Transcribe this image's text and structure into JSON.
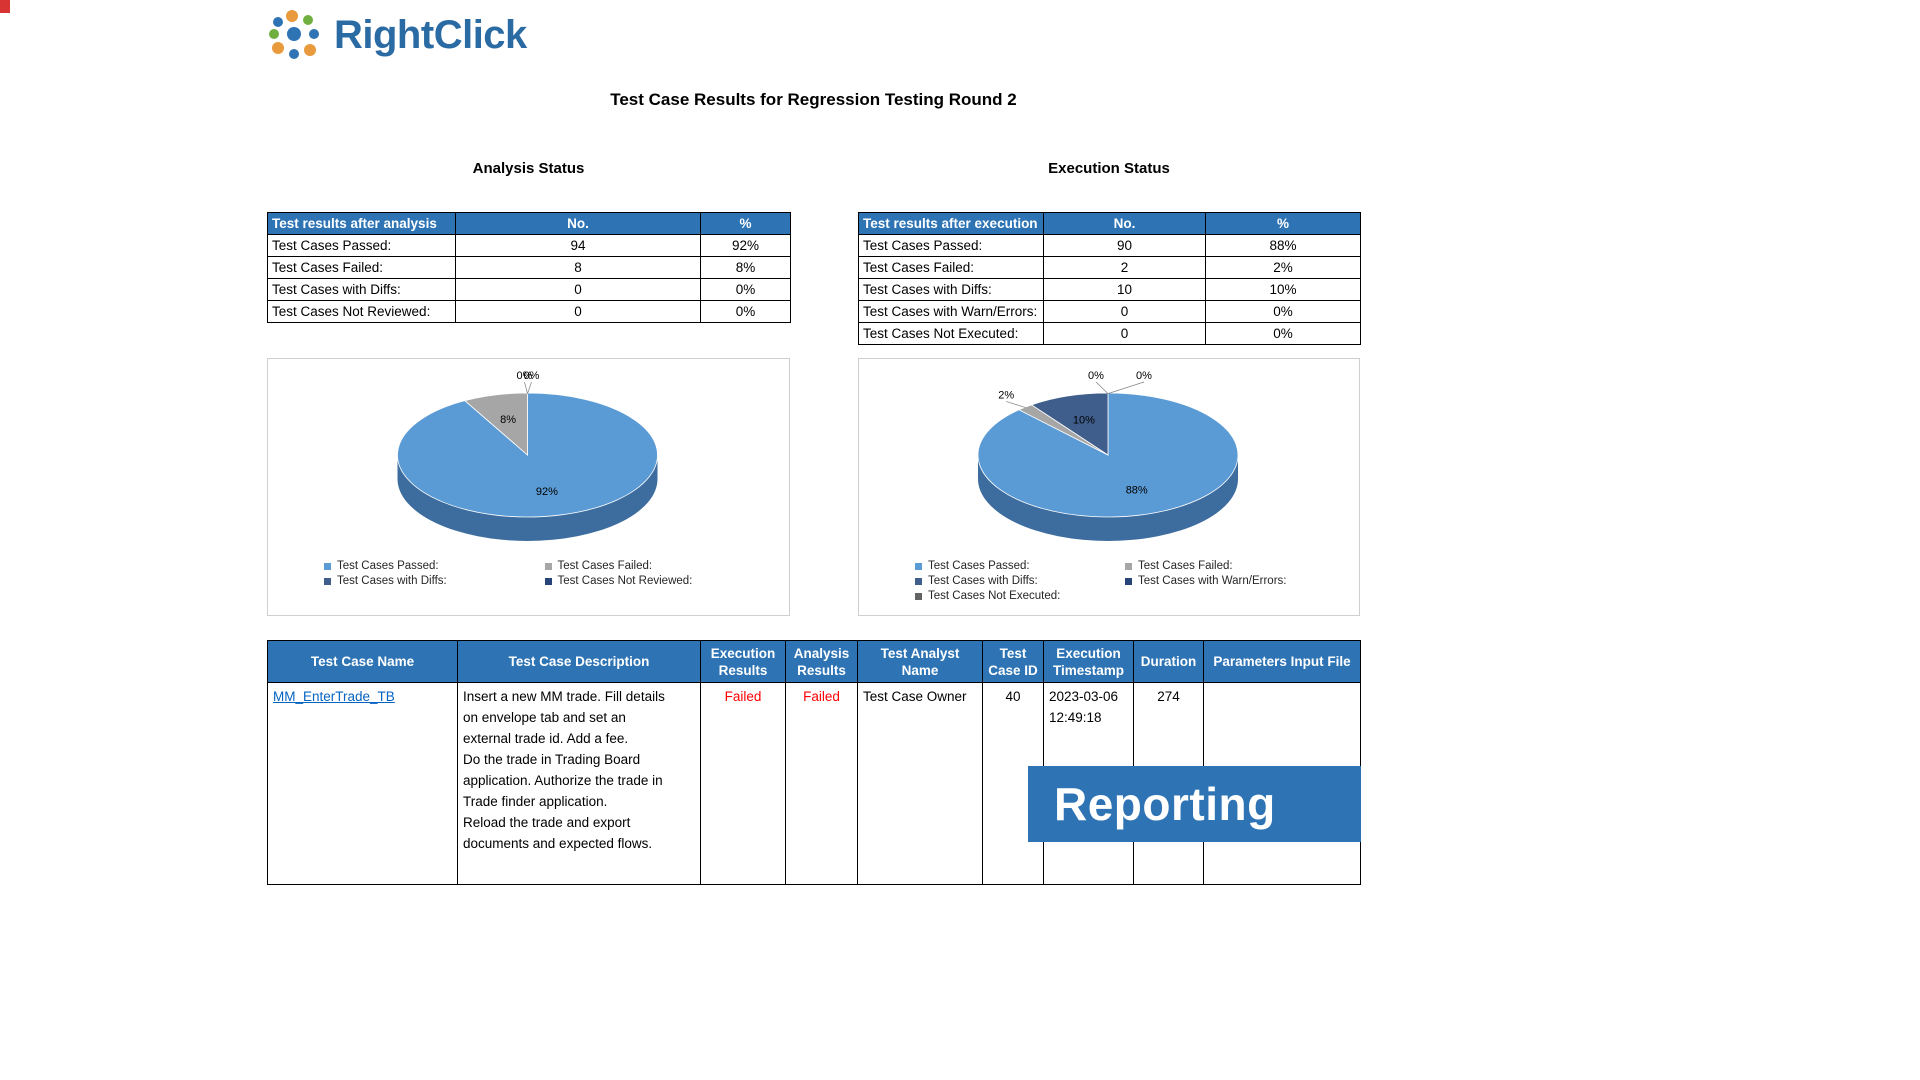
{
  "page": {
    "title": "Test Case Results for Regression Testing Round 2"
  },
  "logo": {
    "text": "RightClick"
  },
  "colors": {
    "accent": "#2e74b5",
    "failed_red": "#ff0000",
    "link_blue": "#0563c1",
    "pie_passed": "#5b9bd5",
    "pie_failed": "#a6a6a6",
    "pie_diffs": "#3f5e8c",
    "pie_side": "#3d6d9e"
  },
  "analysis": {
    "heading": "Analysis Status",
    "table": {
      "headers": [
        "Test results after analysis",
        "No.",
        "%"
      ],
      "rows": [
        [
          "Test Cases Passed:",
          "94",
          "92%"
        ],
        [
          "Test Cases Failed:",
          "8",
          "8%"
        ],
        [
          "Test Cases with Diffs:",
          "0",
          "0%"
        ],
        [
          "Test Cases Not Reviewed:",
          "0",
          "0%"
        ]
      ]
    }
  },
  "execution": {
    "heading": "Execution Status",
    "table": {
      "headers": [
        "Test results after execution",
        "No.",
        "%"
      ],
      "rows": [
        [
          "Test Cases Passed:",
          "90",
          "88%"
        ],
        [
          "Test Cases Failed:",
          "2",
          "2%"
        ],
        [
          "Test Cases with Diffs:",
          "10",
          "10%"
        ],
        [
          "Test Cases with Warn/Errors:",
          "0",
          "0%"
        ],
        [
          "Test Cases Not Executed:",
          "0",
          "0%"
        ]
      ]
    }
  },
  "chart_data": [
    {
      "type": "pie",
      "title": "Analysis Status",
      "effect": "3d",
      "legend_position": "bottom",
      "side_color": "#3d6d9e",
      "slices": [
        {
          "label": "Test Cases Passed:",
          "value": 92,
          "display": "92%",
          "color": "#5b9bd5"
        },
        {
          "label": "Test Cases Failed:",
          "value": 8,
          "display": "8%",
          "color": "#a6a6a6"
        },
        {
          "label": "Test Cases with Diffs:",
          "value": 0,
          "display": "0%",
          "color": "#3f5e8c",
          "label_dx": -3
        },
        {
          "label": "Test Cases Not Reviewed:",
          "value": 0,
          "display": "0%",
          "color": "#264478",
          "label_dx": 4
        }
      ]
    },
    {
      "type": "pie",
      "title": "Execution Status",
      "effect": "3d",
      "legend_position": "bottom",
      "side_color": "#3d6d9e",
      "slices": [
        {
          "label": "Test Cases Passed:",
          "value": 88,
          "display": "88%",
          "color": "#5b9bd5"
        },
        {
          "label": "Test Cases Failed:",
          "value": 2,
          "display": "2%",
          "color": "#a6a6a6",
          "label_dx": -10,
          "label_dy": 2
        },
        {
          "label": "Test Cases with Diffs:",
          "value": 10,
          "display": "10%",
          "color": "#3f5e8c"
        },
        {
          "label": "Test Cases with Warn/Errors:",
          "value": 0,
          "display": "0%",
          "color": "#264478",
          "label_dx": -12
        },
        {
          "label": "Test Cases Not Executed:",
          "value": 0,
          "display": "0%",
          "color": "#636363",
          "label_dx": 36
        }
      ]
    }
  ],
  "results": {
    "headers": [
      "Test Case Name",
      "Test Case Description",
      "Execution Results",
      "Analysis Results",
      "Test Analyst Name",
      "Test Case ID",
      "Execution Timestamp",
      "Duration",
      "Parameters Input File"
    ],
    "row": {
      "name": "MM_EnterTrade_TB",
      "description": "Insert a new MM trade. Fill details\non envelope tab and set an\nexternal trade id. Add a fee.\nDo the trade in Trading Board\napplication. Authorize the trade in\nTrade finder application.\nReload the trade and export\ndocuments and expected flows.",
      "execution_result": "Failed",
      "analysis_result": "Failed",
      "analyst": "Test Case Owner",
      "case_id": "40",
      "timestamp": "2023-03-06 12:49:18",
      "duration": "274",
      "params": ""
    }
  },
  "banner": {
    "label": "Reporting"
  }
}
